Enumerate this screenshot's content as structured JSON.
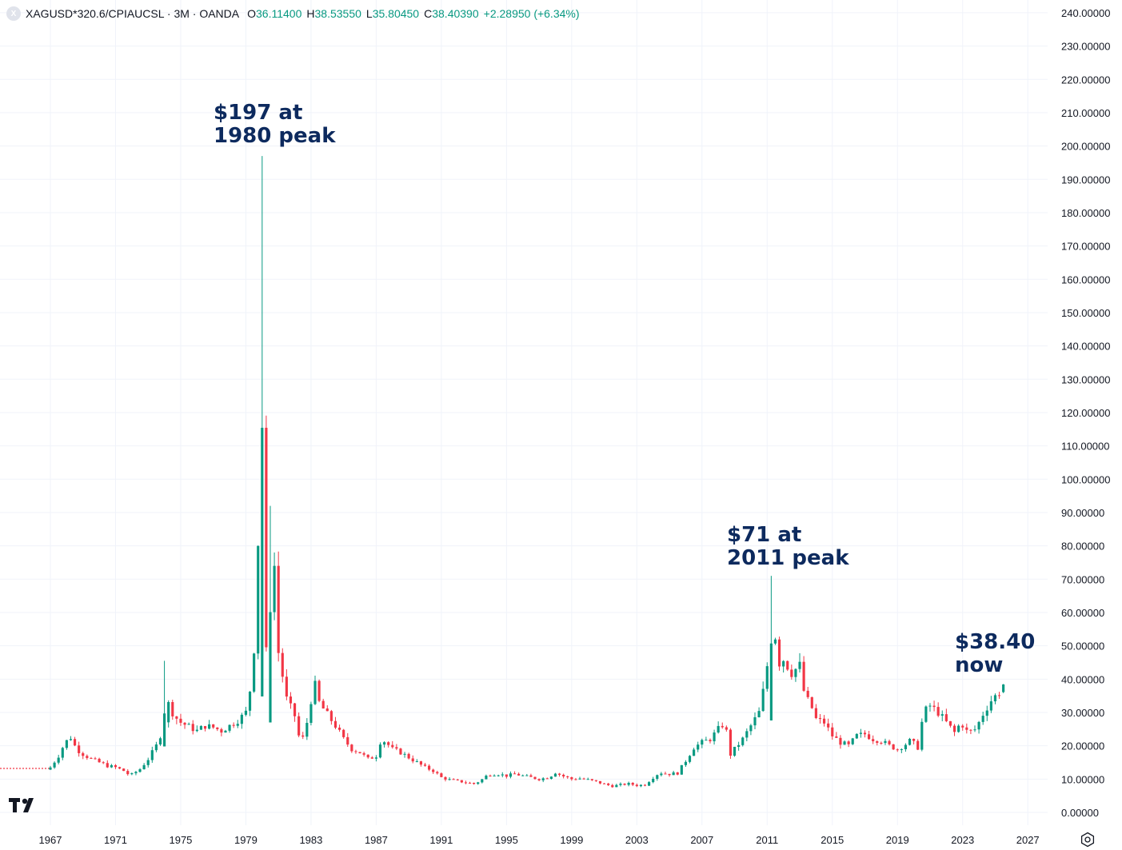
{
  "header": {
    "badge": "X",
    "symbol": "XAGUSD*320.6/CPIAUCSL · 3M · OANDA",
    "o_label": "O",
    "o_value": "36.11400",
    "h_label": "H",
    "h_value": "38.53550",
    "l_label": "L",
    "l_value": "35.80450",
    "c_label": "C",
    "c_value": "38.40390",
    "change": "+2.28950 (+6.34%)"
  },
  "annotations": {
    "peak1980": [
      "$197 at",
      "1980 peak"
    ],
    "peak2011": [
      "$71 at",
      "2011 peak"
    ],
    "now": [
      "$38.40",
      "now"
    ]
  },
  "colors": {
    "up": "#089981",
    "down": "#f23645",
    "grid": "#f0f3fa",
    "axis_text": "#131722",
    "annotation": "#0d2a5e",
    "pre_line": "#f23645"
  },
  "icons": {
    "logo": "tradingview-logo-icon",
    "settings": "settings-gear-icon"
  },
  "chart_data": {
    "type": "candlestick",
    "title": "XAGUSD*320.6/CPIAUCSL · 3M · OANDA",
    "ylim": [
      0,
      240
    ],
    "xlim": [
      1966.0,
      2028.6
    ],
    "y_ticks": [
      "0.00000",
      "10.00000",
      "20.00000",
      "30.00000",
      "40.00000",
      "50.00000",
      "60.00000",
      "70.00000",
      "80.00000",
      "90.00000",
      "100.00000",
      "110.00000",
      "120.00000",
      "130.00000",
      "140.00000",
      "150.00000",
      "160.00000",
      "170.00000",
      "180.00000",
      "190.00000",
      "200.00000",
      "210.00000",
      "220.00000",
      "230.00000",
      "240.00000"
    ],
    "x_ticks": [
      "1967",
      "1971",
      "1975",
      "1979",
      "1983",
      "1987",
      "1991",
      "1995",
      "1999",
      "2003",
      "2007",
      "2011",
      "2015",
      "2019",
      "2023",
      "2027"
    ],
    "grid": true,
    "pre_history_level": 13.2,
    "anchors": [
      [
        1967.0,
        13.5
      ],
      [
        1967.5,
        17
      ],
      [
        1967.9,
        21
      ],
      [
        1968.25,
        22.5
      ],
      [
        1968.6,
        19
      ],
      [
        1969.0,
        17.5
      ],
      [
        1969.5,
        16
      ],
      [
        1970.0,
        15
      ],
      [
        1970.5,
        14
      ],
      [
        1971.0,
        13.5
      ],
      [
        1971.5,
        12.5
      ],
      [
        1971.9,
        11
      ],
      [
        1972.5,
        13
      ],
      [
        1973.0,
        16
      ],
      [
        1973.5,
        20
      ],
      [
        1973.9,
        25
      ],
      [
        1974.2,
        33
      ],
      [
        1974.6,
        29
      ],
      [
        1975.0,
        27
      ],
      [
        1975.6,
        25.5
      ],
      [
        1976.0,
        24.5
      ],
      [
        1976.5,
        26
      ],
      [
        1977.0,
        25.5
      ],
      [
        1977.5,
        24.5
      ],
      [
        1978.0,
        26
      ],
      [
        1978.6,
        28
      ],
      [
        1979.0,
        30
      ],
      [
        1979.3,
        38
      ],
      [
        1979.6,
        55
      ],
      [
        1979.8,
        90
      ],
      [
        1980.0,
        116
      ],
      [
        1980.25,
        48
      ],
      [
        1980.5,
        62
      ],
      [
        1980.75,
        74
      ],
      [
        1981.0,
        48
      ],
      [
        1981.5,
        34
      ],
      [
        1982.0,
        29
      ],
      [
        1982.25,
        23
      ],
      [
        1982.6,
        22
      ],
      [
        1982.9,
        32
      ],
      [
        1983.25,
        38
      ],
      [
        1983.5,
        33
      ],
      [
        1983.9,
        30
      ],
      [
        1984.5,
        26
      ],
      [
        1985.0,
        22
      ],
      [
        1985.5,
        19
      ],
      [
        1986.0,
        18
      ],
      [
        1986.5,
        16
      ],
      [
        1987.0,
        17
      ],
      [
        1987.3,
        22
      ],
      [
        1987.6,
        21
      ],
      [
        1988.0,
        19
      ],
      [
        1988.5,
        18
      ],
      [
        1989.0,
        16.5
      ],
      [
        1989.5,
        15
      ],
      [
        1990.0,
        13.5
      ],
      [
        1990.5,
        12.5
      ],
      [
        1991.0,
        10.5
      ],
      [
        1991.5,
        9.8
      ],
      [
        1992.0,
        9.4
      ],
      [
        1992.5,
        9.0
      ],
      [
        1993.0,
        8.6
      ],
      [
        1993.4,
        9.5
      ],
      [
        1993.9,
        11.5
      ],
      [
        1994.5,
        11.5
      ],
      [
        1995.0,
        11
      ],
      [
        1995.5,
        11.5
      ],
      [
        1996.0,
        11
      ],
      [
        1996.5,
        10.5
      ],
      [
        1997.0,
        10
      ],
      [
        1997.6,
        10.5
      ],
      [
        1998.0,
        12
      ],
      [
        1998.4,
        11
      ],
      [
        1999.0,
        10
      ],
      [
        1999.5,
        10.2
      ],
      [
        2000.0,
        9.8
      ],
      [
        2000.5,
        9.2
      ],
      [
        2001.0,
        8.5
      ],
      [
        2001.5,
        7.9
      ],
      [
        2002.0,
        8.3
      ],
      [
        2002.5,
        8.6
      ],
      [
        2003.0,
        8.1
      ],
      [
        2003.5,
        8.3
      ],
      [
        2004.0,
        10.5
      ],
      [
        2004.4,
        12
      ],
      [
        2004.9,
        11.5
      ],
      [
        2005.5,
        11.8
      ],
      [
        2006.0,
        15.5
      ],
      [
        2006.5,
        19.5
      ],
      [
        2007.0,
        21
      ],
      [
        2007.5,
        22
      ],
      [
        2008.0,
        25
      ],
      [
        2008.4,
        27
      ],
      [
        2008.8,
        16
      ],
      [
        2009.0,
        19
      ],
      [
        2009.5,
        22
      ],
      [
        2010.0,
        26
      ],
      [
        2010.5,
        30
      ],
      [
        2010.9,
        40
      ],
      [
        2011.2,
        52
      ],
      [
        2011.5,
        53
      ],
      [
        2011.75,
        45
      ],
      [
        2012.0,
        46
      ],
      [
        2012.5,
        42
      ],
      [
        2013.0,
        44
      ],
      [
        2013.3,
        35
      ],
      [
        2013.7,
        32
      ],
      [
        2014.0,
        28
      ],
      [
        2014.5,
        27
      ],
      [
        2015.0,
        23
      ],
      [
        2015.5,
        21
      ],
      [
        2016.0,
        20
      ],
      [
        2016.5,
        23
      ],
      [
        2017.0,
        23.5
      ],
      [
        2017.5,
        22
      ],
      [
        2018.0,
        21.5
      ],
      [
        2018.5,
        20
      ],
      [
        2019.0,
        19
      ],
      [
        2019.5,
        20.5
      ],
      [
        2019.9,
        22
      ],
      [
        2020.2,
        18
      ],
      [
        2020.6,
        30
      ],
      [
        2021.0,
        32
      ],
      [
        2021.5,
        30
      ],
      [
        2022.0,
        27
      ],
      [
        2022.5,
        24
      ],
      [
        2022.9,
        27
      ],
      [
        2023.3,
        24
      ],
      [
        2023.8,
        25
      ],
      [
        2024.3,
        30
      ],
      [
        2024.8,
        34
      ],
      [
        2025.3,
        36.1
      ],
      [
        2025.5,
        38.4
      ]
    ],
    "spikes": [
      [
        1980.0,
        197,
        58
      ],
      [
        2011.3,
        71,
        46
      ],
      [
        1974.0,
        45.5,
        33
      ],
      [
        1979.9,
        117,
        60
      ],
      [
        1980.5,
        92,
        45
      ]
    ],
    "last_bar": {
      "open": 36.114,
      "high": 38.5355,
      "low": 35.8045,
      "close": 38.4039
    }
  }
}
